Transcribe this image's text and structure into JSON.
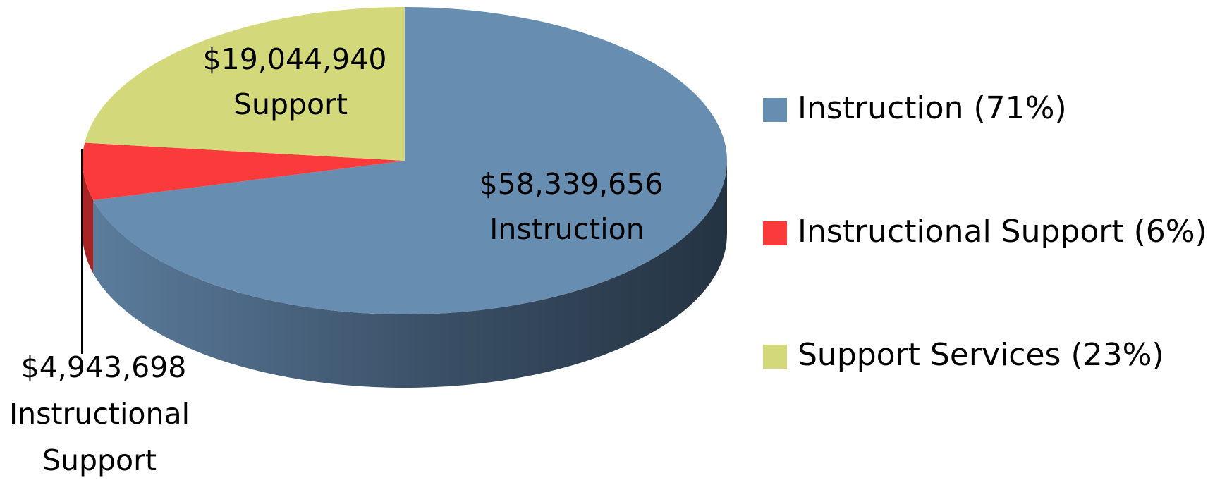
{
  "chart_data": {
    "type": "pie3d",
    "categories": [
      "Instruction (71%)",
      "Instructional Support (6%)",
      "Support Services (23%)"
    ],
    "values": [
      58339656,
      4943698,
      19044940
    ],
    "value_labels": [
      "$58,339,656",
      "$4,943,698",
      "$19,044,940"
    ],
    "slice_labels": [
      [
        "Instruction"
      ],
      [
        "Instructional",
        "Support"
      ],
      [
        "Support"
      ]
    ],
    "colors": [
      "#678db1",
      "#fb3b3b",
      "#d3d97a"
    ],
    "legend": "right"
  }
}
